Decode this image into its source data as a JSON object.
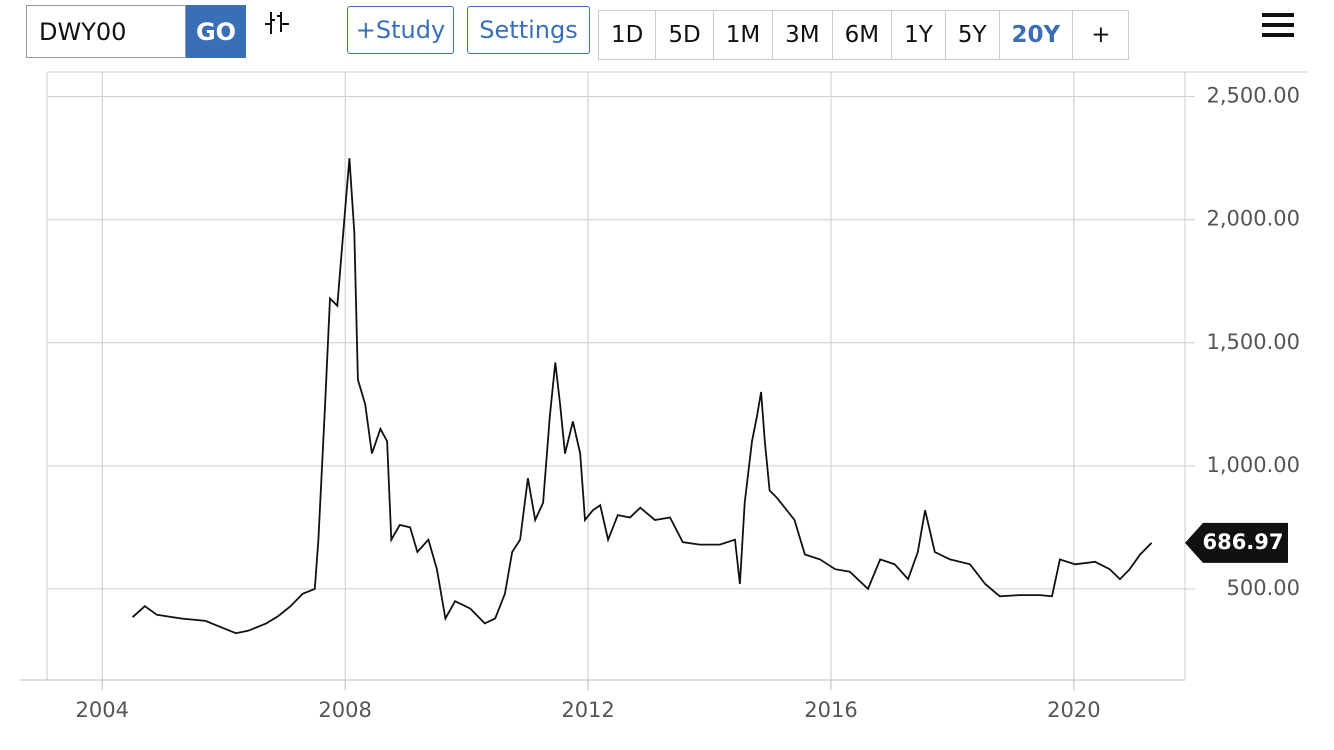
{
  "toolbar": {
    "symbol": "DWY00",
    "go": "GO",
    "study": "+Study",
    "settings": "Settings",
    "ranges": [
      "1D",
      "5D",
      "1M",
      "3M",
      "6M",
      "1Y",
      "5Y",
      "20Y",
      "+"
    ],
    "active_range": "20Y"
  },
  "chart_data": {
    "type": "line",
    "color": "#111111",
    "x": [
      2004.5,
      2004.7,
      2004.9,
      2005.3,
      2005.7,
      2006.0,
      2006.2,
      2006.4,
      2006.7,
      2006.9,
      2007.1,
      2007.3,
      2007.5,
      2007.56,
      2007.67,
      2007.75,
      2007.87,
      2007.97,
      2008.07,
      2008.15,
      2008.21,
      2008.33,
      2008.44,
      2008.58,
      2008.69,
      2008.76,
      2008.9,
      2009.07,
      2009.19,
      2009.37,
      2009.51,
      2009.65,
      2009.81,
      2010.06,
      2010.3,
      2010.47,
      2010.63,
      2010.75,
      2010.88,
      2011.01,
      2011.13,
      2011.26,
      2011.37,
      2011.46,
      2011.54,
      2011.62,
      2011.75,
      2011.87,
      2011.95,
      2012.08,
      2012.2,
      2012.33,
      2012.49,
      2012.69,
      2012.86,
      2013.1,
      2013.35,
      2013.56,
      2013.84,
      2014.17,
      2014.42,
      2014.5,
      2014.58,
      2014.7,
      2014.78,
      2014.85,
      2014.91,
      2014.99,
      2015.11,
      2015.24,
      2015.4,
      2015.57,
      2015.82,
      2016.07,
      2016.31,
      2016.61,
      2016.81,
      2017.05,
      2017.27,
      2017.43,
      2017.55,
      2017.71,
      2017.96,
      2018.29,
      2018.54,
      2018.78,
      2019.11,
      2019.44,
      2019.64,
      2019.77,
      2020.02,
      2020.35,
      2020.59,
      2020.76,
      2020.92,
      2021.09,
      2021.28
    ],
    "values": [
      385,
      430,
      395,
      380,
      370,
      340,
      320,
      330,
      360,
      390,
      430,
      480,
      500,
      700,
      1250,
      1680,
      1650,
      1950,
      2250,
      1950,
      1350,
      1250,
      1050,
      1150,
      1100,
      700,
      760,
      750,
      650,
      700,
      580,
      380,
      450,
      420,
      360,
      380,
      480,
      650,
      700,
      950,
      780,
      850,
      1200,
      1420,
      1250,
      1050,
      1180,
      1050,
      780,
      820,
      840,
      700,
      800,
      790,
      830,
      780,
      790,
      690,
      680,
      680,
      700,
      520,
      850,
      1100,
      1200,
      1300,
      1100,
      900,
      870,
      830,
      780,
      640,
      620,
      580,
      570,
      500,
      620,
      600,
      540,
      650,
      820,
      650,
      620,
      600,
      520,
      470,
      475,
      475,
      470,
      620,
      600,
      610,
      580,
      540,
      580,
      640,
      687
    ],
    "current_value": 686.97,
    "xlim": [
      2003.09,
      2021.83
    ],
    "xticks": [
      2004,
      2008,
      2012,
      2016,
      2020
    ],
    "ylim": [
      130,
      2600
    ],
    "yticks": [
      {
        "value": 500,
        "label": "500.00"
      },
      {
        "value": 1000,
        "label": "1,000.00"
      },
      {
        "value": 1500,
        "label": "1,500.00"
      },
      {
        "value": 2000,
        "label": "2,000.00"
      },
      {
        "value": 2500,
        "label": "2,500.00"
      }
    ],
    "grid": true
  }
}
